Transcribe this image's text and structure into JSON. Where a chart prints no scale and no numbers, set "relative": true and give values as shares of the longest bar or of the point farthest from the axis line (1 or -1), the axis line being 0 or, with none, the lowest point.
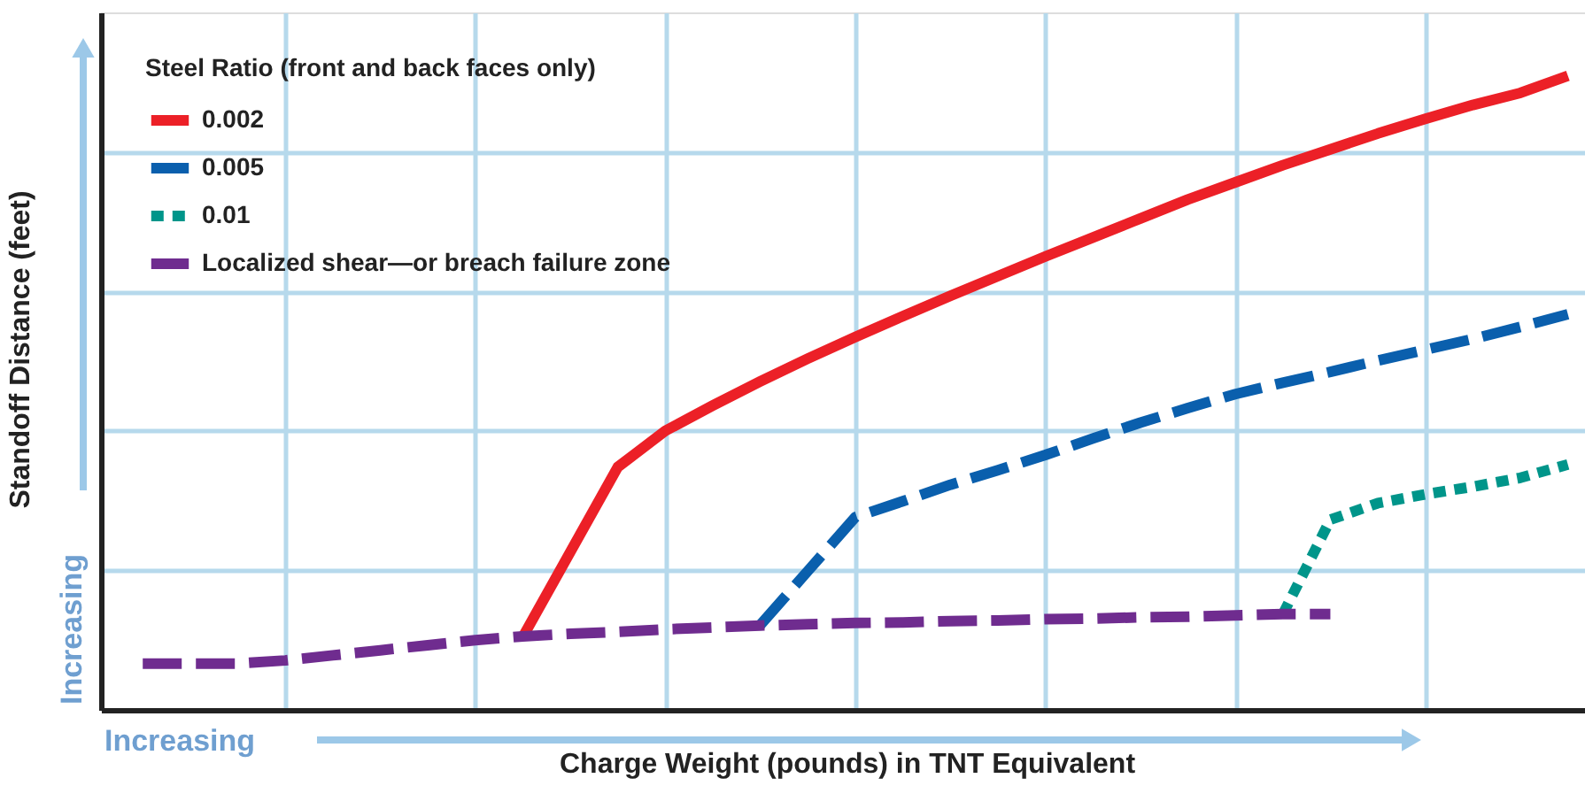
{
  "chart_data": {
    "type": "line",
    "relative": true,
    "xlabel": "Charge Weight (pounds) in TNT Equivalent",
    "ylabel": "Standoff Distance (feet)",
    "legend_title": "Steel Ratio (front and back faces only)",
    "legend": "top left",
    "grid": true,
    "tick_labels": false,
    "marker": "none",
    "categories": [
      null,
      null,
      null,
      null,
      null,
      null,
      null,
      null,
      null,
      null,
      null,
      null,
      null,
      null,
      null,
      null,
      null,
      null,
      null,
      null,
      null,
      null,
      null,
      null,
      null,
      null,
      null,
      null,
      null,
      null,
      null
    ],
    "annotations": [
      "Increasing",
      "Increasing"
    ],
    "series": [
      {
        "name": "0.002",
        "color": "#ec2027",
        "line_style": "solid",
        "values": [
          null,
          null,
          null,
          null,
          null,
          null,
          null,
          null,
          0.115,
          0.249,
          0.383,
          0.44,
          0.48,
          0.518,
          0.554,
          0.588,
          0.621,
          0.653,
          0.684,
          0.715,
          0.745,
          0.775,
          0.805,
          0.832,
          0.859,
          0.884,
          0.909,
          0.932,
          0.954,
          0.973,
          1
        ]
      },
      {
        "name": "0.005",
        "color": "#0a5fad",
        "line_style": "dashed",
        "values": [
          null,
          null,
          null,
          null,
          null,
          null,
          null,
          null,
          null,
          null,
          null,
          null,
          null,
          0.134,
          0.219,
          0.304,
          0.329,
          0.355,
          0.378,
          0.402,
          0.428,
          0.453,
          0.476,
          0.498,
          0.516,
          0.533,
          0.551,
          0.568,
          0.585,
          0.604,
          0.624
        ]
      },
      {
        "name": "0.01",
        "color": "#00958a",
        "line_style": "dotted",
        "values": [
          null,
          null,
          null,
          null,
          null,
          null,
          null,
          null,
          null,
          null,
          null,
          null,
          null,
          null,
          null,
          null,
          null,
          null,
          null,
          null,
          null,
          null,
          null,
          null,
          0.151,
          0.3,
          0.326,
          0.34,
          0.352,
          0.366,
          0.387
        ]
      },
      {
        "name": "Localized shear—or breach failure zone",
        "color": "#6f2c8f",
        "line_style": "dashed",
        "values": [
          0.073,
          0.073,
          0.073,
          0.078,
          0.086,
          0.094,
          0.102,
          0.11,
          0.116,
          0.12,
          0.123,
          0.127,
          0.13,
          0.133,
          0.135,
          0.137,
          0.138,
          0.14,
          0.141,
          0.143,
          0.144,
          0.146,
          0.147,
          0.149,
          0.151,
          0.151,
          null,
          null,
          null,
          null,
          null
        ]
      }
    ]
  }
}
